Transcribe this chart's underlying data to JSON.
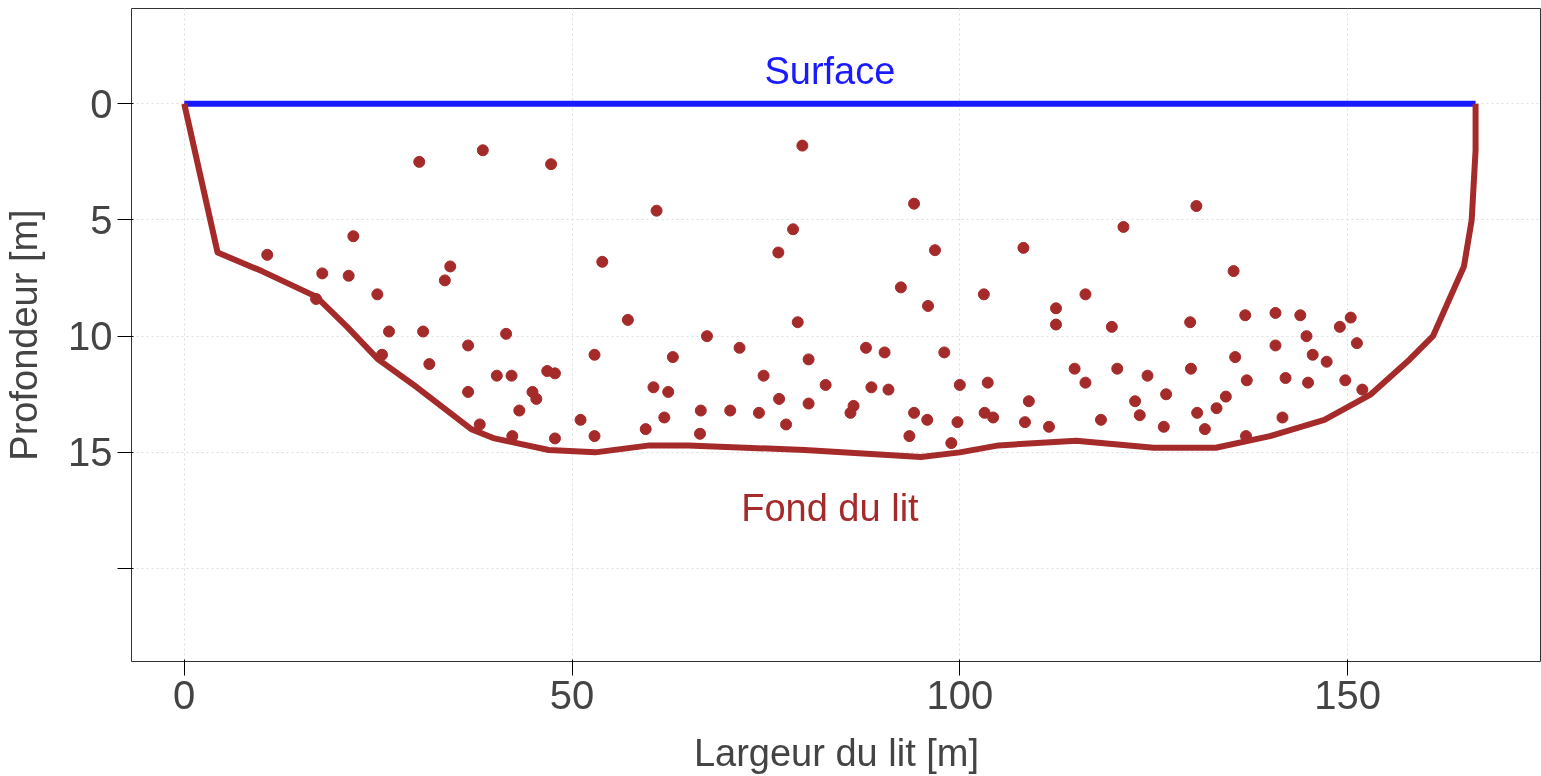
{
  "chart_data": {
    "type": "line",
    "xlabel": "Largeur du lit [m]",
    "ylabel": "Profondeur [m]",
    "xlim": [
      -6.8,
      175
    ],
    "ylim": [
      24,
      -4.1
    ],
    "xticks": [
      0,
      50,
      100,
      150
    ],
    "yticks": [
      0,
      5,
      10,
      15,
      {
        "value": 20,
        "label": null
      }
    ],
    "grid": true,
    "series": [
      {
        "type": "scatter",
        "color": "#a52a2a",
        "marker": "circle",
        "x": [
          38.5,
          79.7,
          47.3,
          30.3,
          94.1,
          130.5,
          60.9,
          78.5,
          121.1,
          21.8,
          96.8,
          108.2,
          76.6,
          10.7,
          53.9,
          34.3,
          135.3,
          17.8,
          21.2,
          33.6,
          92.4,
          95.9,
          103.1,
          116.2,
          24.9,
          17.0,
          112.4,
          136.8,
          150.4,
          140.7,
          143.9,
          57.2,
          79.1,
          129.7,
          119.6,
          112.4,
          41.5,
          30.8,
          26.4,
          149,
          144.7,
          67.4,
          140.7,
          36.6,
          71.6,
          151.2,
          87.9,
          90.3,
          98,
          135.5,
          145.5,
          52.9,
          63,
          25.5,
          80.5,
          147.3,
          31.6,
          114.8,
          120.3,
          129.8,
          124.2,
          142,
          40.3,
          42.2,
          46.8,
          47.8,
          74.7,
          103.6,
          116.2,
          137,
          100,
          144.9,
          149.7,
          88.6,
          82.7,
          60.5,
          62.4,
          90.8,
          36.6,
          44.9,
          151.9,
          45.4,
          126.6,
          134.3,
          108.9,
          76.7,
          80.5,
          86.3,
          122.6,
          133.1,
          43.2,
          66.6,
          70.4,
          74.1,
          85.9,
          94.1,
          103.2,
          130.6,
          141.6,
          104.3,
          123.2,
          61.9,
          51.1,
          95.8,
          118.2,
          77.6,
          108.4,
          99.7,
          126.3,
          59.5,
          111.5,
          131.6,
          38.1,
          42.3,
          52.9,
          66.5,
          93.5,
          136.9,
          47.8,
          98.9
        ],
        "values": [
          2.0,
          1.8,
          2.6,
          2.5,
          4.3,
          4.4,
          4.6,
          5.4,
          5.3,
          5.7,
          6.3,
          6.2,
          6.4,
          6.5,
          6.8,
          7.0,
          7.2,
          7.3,
          7.4,
          7.6,
          7.9,
          8.7,
          8.2,
          8.2,
          8.2,
          8.4,
          8.8,
          9.1,
          9.2,
          9.0,
          9.1,
          9.3,
          9.4,
          9.4,
          9.6,
          9.5,
          9.9,
          9.8,
          9.8,
          9.6,
          10.0,
          10.0,
          10.4,
          10.4,
          10.5,
          10.3,
          10.5,
          10.7,
          10.7,
          10.9,
          10.8,
          10.8,
          10.9,
          10.8,
          11.0,
          11.1,
          11.2,
          11.4,
          11.4,
          11.4,
          11.7,
          11.8,
          11.7,
          11.7,
          11.5,
          11.6,
          11.7,
          12.0,
          12.0,
          11.9,
          12.1,
          12.0,
          11.9,
          12.2,
          12.1,
          12.2,
          12.4,
          12.3,
          12.4,
          12.4,
          12.3,
          12.7,
          12.5,
          12.6,
          12.8,
          12.7,
          12.9,
          13.0,
          12.8,
          13.1,
          13.2,
          13.2,
          13.2,
          13.3,
          13.3,
          13.3,
          13.3,
          13.3,
          13.5,
          13.5,
          13.4,
          13.5,
          13.6,
          13.6,
          13.6,
          13.8,
          13.7,
          13.7,
          13.9,
          14.0,
          13.9,
          14.0,
          13.8,
          14.3,
          14.3,
          14.2,
          14.3,
          14.3,
          14.4,
          14.6
        ]
      },
      {
        "name": "Surface",
        "color": "#1a1aff",
        "x": [
          0,
          166.5
        ],
        "values": [
          0,
          0
        ]
      },
      {
        "name": "Fond du lit",
        "color": "#a52a2a",
        "x": [
          0,
          4.3,
          10,
          17,
          21,
          25,
          30,
          37,
          40,
          47,
          53,
          60,
          65,
          80,
          95,
          100,
          105,
          115,
          125,
          133,
          140,
          147,
          153,
          158,
          161,
          163,
          165,
          166,
          166.5,
          166.5
        ],
        "values": [
          0,
          6.4,
          7.2,
          8.3,
          9.6,
          11.0,
          12.2,
          14.0,
          14.4,
          14.9,
          15.0,
          14.7,
          14.7,
          14.9,
          15.2,
          15.0,
          14.7,
          14.5,
          14.8,
          14.8,
          14.3,
          13.6,
          12.5,
          11.0,
          10.0,
          8.5,
          7.0,
          5.0,
          2.0,
          0
        ]
      }
    ]
  }
}
